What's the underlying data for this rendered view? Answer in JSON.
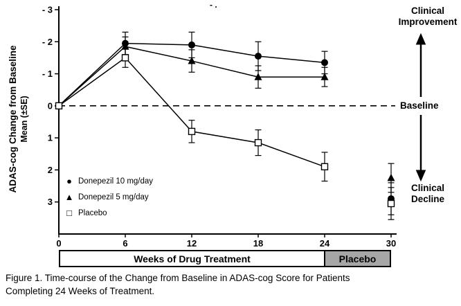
{
  "stray_mark": "- .",
  "y_axis": {
    "label_line1": "ADAS-cog Change from Baseline",
    "label_line2": "Mean (±SE)"
  },
  "annotations": {
    "improvement_line1": "Clinical",
    "improvement_line2": "Improvement",
    "baseline": "Baseline",
    "decline_line1": "Clinical",
    "decline_line2": "Decline"
  },
  "legend": {
    "items": [
      {
        "glyph": "●",
        "marker": "filled-circle",
        "label": "Donepezil 10 mg/day"
      },
      {
        "glyph": "▲",
        "marker": "filled-triangle",
        "label": "Donepezil 5 mg/day"
      },
      {
        "glyph": "□",
        "marker": "open-square",
        "label": "Placebo"
      }
    ]
  },
  "bottom_bar": {
    "treatment_label": "Weeks of Drug Treatment",
    "placebo_label": "Placebo"
  },
  "caption": {
    "line1": "Figure 1. Time-course of the Change from Baseline in ADAS-cog Score for Patients",
    "line2": "Completing 24 Weeks of Treatment."
  },
  "colors": {
    "line": "#000000",
    "placebo_bar_fill": "#a6a6a6",
    "background": "#ffffff"
  },
  "chart_data": {
    "type": "line",
    "title": "Figure 1. Time-course of the Change from Baseline in ADAS-cog Score for Patients Completing 24 Weeks of Treatment.",
    "xlabel": "Weeks of Drug Treatment",
    "ylabel": "ADAS-cog Change from Baseline Mean (±SE)",
    "x": [
      0,
      6,
      12,
      18,
      24,
      30
    ],
    "xlim": [
      0,
      30
    ],
    "ylim": [
      -3,
      4
    ],
    "y_axis_inverted": true,
    "baseline_value": 0,
    "line_through_week": 24,
    "x_ticks": [
      0,
      6,
      12,
      18,
      24,
      30
    ],
    "x_tick_labels": [
      "0",
      "6",
      "12",
      "18",
      "24",
      "30"
    ],
    "y_ticks": [
      -3,
      -2,
      -1,
      0,
      1,
      2,
      3
    ],
    "y_tick_labels": [
      "- 3",
      "- 2",
      "- 1",
      "0",
      "1",
      "2",
      "3"
    ],
    "legend_position": "lower-left",
    "grid": false,
    "series": [
      {
        "name": "Donepezil 10 mg/day",
        "marker": "filled-circle",
        "values": [
          0,
          -1.95,
          -1.9,
          -1.55,
          -1.35,
          2.9
        ],
        "se": [
          0,
          0.35,
          0.4,
          0.45,
          0.35,
          0.5
        ]
      },
      {
        "name": "Donepezil 5 mg/day",
        "marker": "filled-triangle",
        "values": [
          0,
          -1.85,
          -1.4,
          -0.9,
          -0.9,
          2.25
        ],
        "se": [
          0,
          0.3,
          0.35,
          0.35,
          0.3,
          0.45
        ]
      },
      {
        "name": "Placebo",
        "marker": "open-square",
        "values": [
          0,
          -1.5,
          0.8,
          1.15,
          1.9,
          3.05
        ],
        "se": [
          0,
          0.3,
          0.35,
          0.4,
          0.45,
          0.5
        ]
      }
    ]
  }
}
